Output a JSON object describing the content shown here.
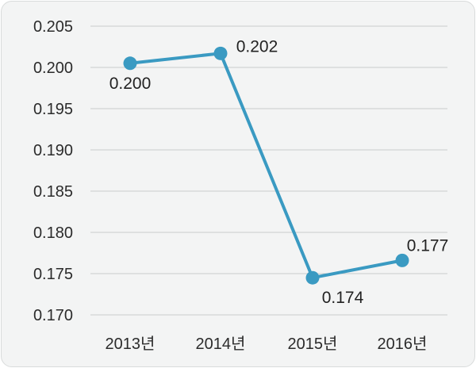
{
  "chart_data": {
    "type": "line",
    "categories": [
      "2013년",
      "2014년",
      "2015년",
      "2016년"
    ],
    "series": [
      {
        "values": [
          0.2005,
          0.2017,
          0.1745,
          0.1766
        ],
        "labels": [
          "0.200",
          "0.202",
          "0.174",
          "0.177"
        ]
      }
    ],
    "ylim": [
      0.17,
      0.205
    ],
    "yticks": [
      "0.205",
      "0.200",
      "0.195",
      "0.190",
      "0.185",
      "0.180",
      "0.175",
      "0.170"
    ],
    "ytick_values": [
      0.205,
      0.2,
      0.195,
      0.19,
      0.185,
      0.18,
      0.175,
      0.17
    ],
    "grid": true,
    "line_color": "#3a9ac2",
    "title": "",
    "xlabel": "",
    "ylabel": ""
  }
}
